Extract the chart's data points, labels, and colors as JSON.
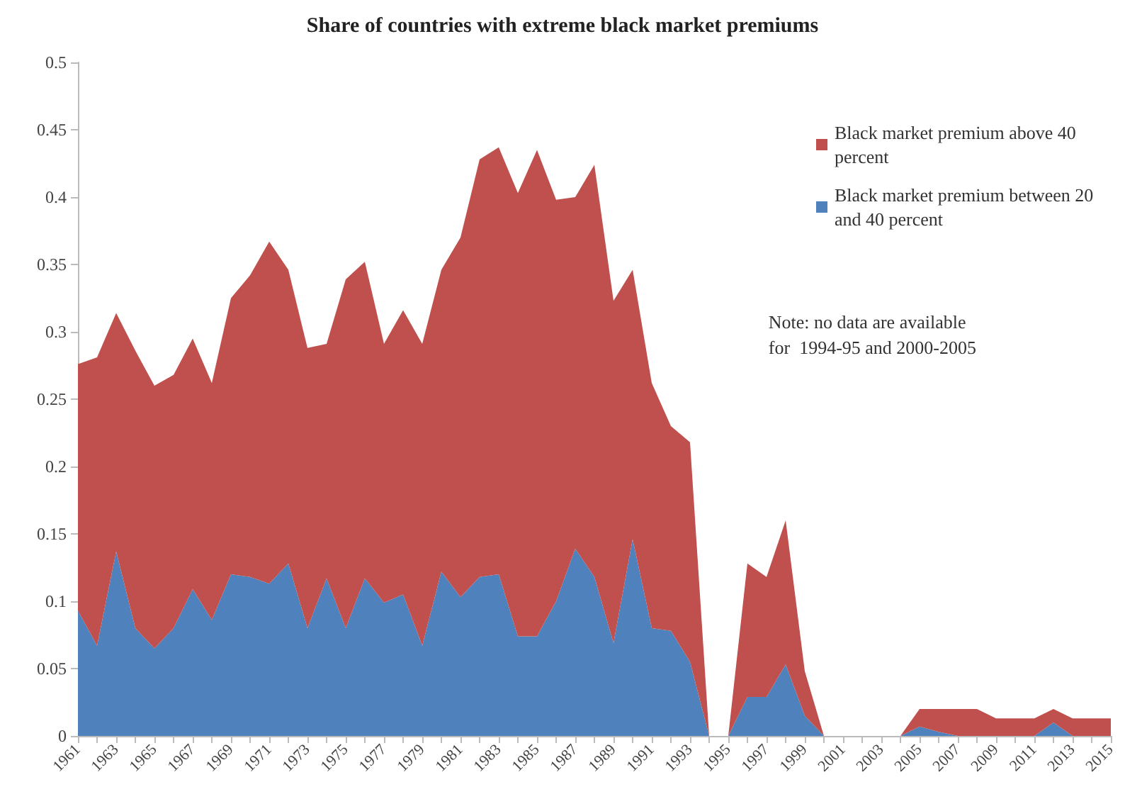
{
  "chart_data": {
    "type": "area",
    "title": "Share of countries with extreme black market premiums",
    "stacked": true,
    "categories": [
      "1961",
      null,
      "1963",
      null,
      "1965",
      null,
      "1967",
      null,
      "1969",
      null,
      "1971",
      null,
      "1973",
      null,
      "1975",
      null,
      "1977",
      null,
      "1979",
      null,
      "1981",
      null,
      "1983",
      null,
      "1985",
      null,
      "1987",
      null,
      "1989",
      null,
      "1991",
      null,
      "1993",
      null,
      "1995",
      null,
      "1997",
      null,
      "1999",
      null,
      "2001",
      null,
      "2003",
      null,
      "2005",
      null,
      "2007",
      null,
      "2009",
      null,
      "2011",
      null,
      "2013",
      null,
      "2015"
    ],
    "series": [
      {
        "name": "Black market premium between 20 and 40 percent",
        "color": "#4f81bd",
        "values": [
          0.093,
          0.067,
          0.137,
          0.08,
          0.065,
          0.08,
          0.109,
          0.086,
          0.12,
          0.118,
          0.113,
          0.128,
          0.08,
          0.117,
          0.08,
          0.117,
          0.099,
          0.105,
          0.067,
          0.122,
          0.103,
          0.118,
          0.12,
          0.074,
          0.074,
          0.1,
          0.139,
          0.118,
          0.069,
          0.146,
          0.08,
          0.078,
          0.055,
          0,
          0,
          0.029,
          0.029,
          0.053,
          0.015,
          0,
          0,
          0,
          0,
          0,
          0.007,
          0.003,
          0,
          0,
          0,
          0,
          0,
          0.01,
          0,
          0,
          0
        ]
      },
      {
        "name": "Black market premium above 40 percent",
        "color": "#c0504d",
        "values": [
          0.183,
          0.214,
          0.177,
          0.206,
          0.195,
          0.188,
          0.186,
          0.176,
          0.205,
          0.224,
          0.254,
          0.218,
          0.208,
          0.174,
          0.259,
          0.235,
          0.192,
          0.211,
          0.224,
          0.224,
          0.267,
          0.31,
          0.317,
          0.329,
          0.361,
          0.298,
          0.261,
          0.306,
          0.254,
          0.2,
          0.182,
          0.152,
          0.163,
          0,
          0,
          0.099,
          0.089,
          0.107,
          0.033,
          0,
          0,
          0,
          0,
          0,
          0.013,
          0.017,
          0.02,
          0.02,
          0.013,
          0.013,
          0.013,
          0.01,
          0.013,
          0.013,
          0.013
        ]
      }
    ],
    "ylim": [
      0,
      0.5
    ],
    "yticks": [
      0,
      0.05,
      0.1,
      0.15,
      0.2,
      0.25,
      0.3,
      0.35,
      0.4,
      0.45,
      0.5
    ],
    "legend": "top right",
    "annotations": [
      "Note: no data are available\nfor  1994-95 and 2000-2005"
    ]
  }
}
